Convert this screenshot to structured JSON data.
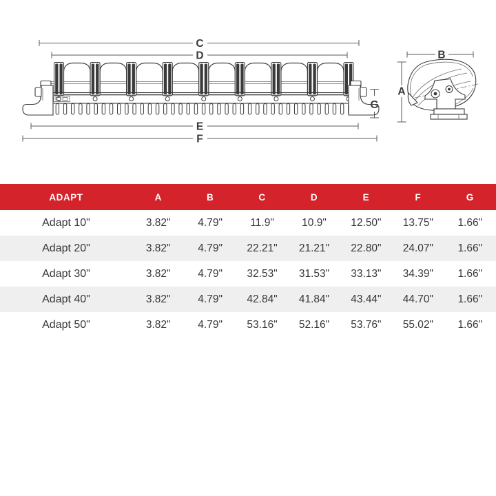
{
  "diagram": {
    "front_view": {
      "dim_c": "C",
      "dim_d": "D",
      "dim_e": "E",
      "dim_f": "F",
      "dim_g": "G"
    },
    "side_view": {
      "dim_a": "A",
      "dim_b": "B"
    }
  },
  "table": {
    "headers": [
      "ADAPT",
      "A",
      "B",
      "C",
      "D",
      "E",
      "F",
      "G"
    ],
    "rows": [
      {
        "name": "Adapt 10\"",
        "values": [
          "3.82\"",
          "4.79\"",
          "11.9\"",
          "10.9\"",
          "12.50\"",
          "13.75\"",
          "1.66\""
        ]
      },
      {
        "name": "Adapt 20\"",
        "values": [
          "3.82\"",
          "4.79\"",
          "22.21\"",
          "21.21\"",
          "22.80\"",
          "24.07\"",
          "1.66\""
        ]
      },
      {
        "name": "Adapt 30\"",
        "values": [
          "3.82\"",
          "4.79\"",
          "32.53\"",
          "31.53\"",
          "33.13\"",
          "34.39\"",
          "1.66\""
        ]
      },
      {
        "name": "Adapt 40\"",
        "values": [
          "3.82\"",
          "4.79\"",
          "42.84\"",
          "41.84\"",
          "43.44\"",
          "44.70\"",
          "1.66\""
        ]
      },
      {
        "name": "Adapt 50\"",
        "values": [
          "3.82\"",
          "4.79\"",
          "53.16\"",
          "52.16\"",
          "53.76\"",
          "55.02\"",
          "1.66\""
        ]
      }
    ]
  },
  "colors": {
    "header_red": "#d4232b",
    "row_stripe": "#efefef",
    "line_color": "#3a3a3a"
  }
}
